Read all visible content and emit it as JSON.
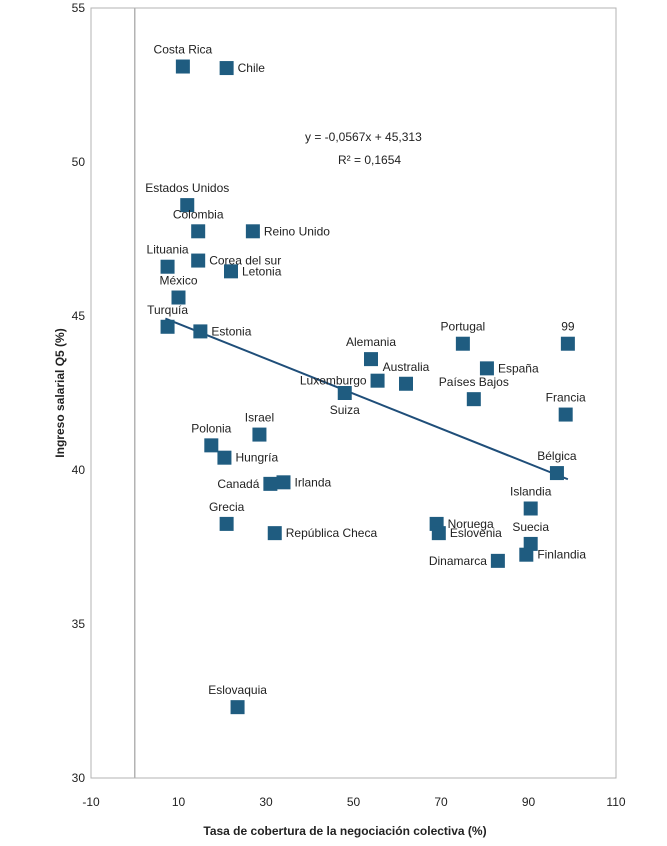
{
  "chart_data": {
    "type": "scatter",
    "title": "",
    "xlabel": "Tasa de cobertura de la negociación colectiva (%)",
    "ylabel": "Ingreso salarial Q5 (%)",
    "xlim": [
      -10,
      110
    ],
    "ylim": [
      30,
      55
    ],
    "xticks": [
      -10,
      10,
      30,
      50,
      70,
      90,
      110
    ],
    "yticks": [
      30,
      35,
      40,
      45,
      50,
      55
    ],
    "grid": false,
    "marker_color": "#1f5c80",
    "trendline": {
      "slope": -0.0567,
      "intercept": 45.313,
      "x_range": [
        7,
        99
      ],
      "color": "#1f4e79",
      "equation": "y =  -0,0567x + 45,313",
      "r2": "R² = 0,1654"
    },
    "points": [
      {
        "label": "Costa Rica",
        "x": 11,
        "y": 53.1,
        "pos": "top"
      },
      {
        "label": "Chile",
        "x": 21,
        "y": 53.05,
        "pos": "right"
      },
      {
        "label": "Estados Unidos",
        "x": 12,
        "y": 48.6,
        "pos": "top"
      },
      {
        "label": "Colombia",
        "x": 14.5,
        "y": 47.75,
        "pos": "top"
      },
      {
        "label": "Reino Unido",
        "x": 27,
        "y": 47.75,
        "pos": "right"
      },
      {
        "label": "Lituania",
        "x": 7.5,
        "y": 46.6,
        "pos": "top"
      },
      {
        "label": "Corea del sur",
        "x": 14.5,
        "y": 46.8,
        "pos": "right"
      },
      {
        "label": "Letonia",
        "x": 22,
        "y": 46.45,
        "pos": "right"
      },
      {
        "label": "México",
        "x": 10,
        "y": 45.6,
        "pos": "top"
      },
      {
        "label": "Turquía",
        "x": 7.5,
        "y": 44.65,
        "pos": "top"
      },
      {
        "label": "Estonia",
        "x": 15,
        "y": 44.5,
        "pos": "right"
      },
      {
        "label": "Alemania",
        "x": 54,
        "y": 43.6,
        "pos": "top"
      },
      {
        "label": "Portugal",
        "x": 75,
        "y": 44.1,
        "pos": "top"
      },
      {
        "label": "99",
        "x": 99,
        "y": 44.1,
        "pos": "top"
      },
      {
        "label": "España",
        "x": 80.5,
        "y": 43.3,
        "pos": "right"
      },
      {
        "label": "Australia",
        "x": 62,
        "y": 42.8,
        "pos": "top"
      },
      {
        "label": "Luxemburgo",
        "x": 55.5,
        "y": 42.9,
        "pos": "left"
      },
      {
        "label": "Países Bajos",
        "x": 77.5,
        "y": 42.3,
        "pos": "top"
      },
      {
        "label": "Suiza",
        "x": 48,
        "y": 42.5,
        "pos": "bottom"
      },
      {
        "label": "Francia",
        "x": 98.5,
        "y": 41.8,
        "pos": "top"
      },
      {
        "label": "Israel",
        "x": 28.5,
        "y": 41.15,
        "pos": "top"
      },
      {
        "label": "Polonia",
        "x": 17.5,
        "y": 40.8,
        "pos": "top"
      },
      {
        "label": "Hungría",
        "x": 20.5,
        "y": 40.4,
        "pos": "right"
      },
      {
        "label": "Bélgica",
        "x": 96.5,
        "y": 39.9,
        "pos": "top"
      },
      {
        "label": "Canadá",
        "x": 31,
        "y": 39.55,
        "pos": "left"
      },
      {
        "label": "Irlanda",
        "x": 34,
        "y": 39.6,
        "pos": "right"
      },
      {
        "label": "Islandia",
        "x": 90.5,
        "y": 38.75,
        "pos": "top"
      },
      {
        "label": "Grecia",
        "x": 21,
        "y": 38.25,
        "pos": "top"
      },
      {
        "label": "Noruega",
        "x": 69,
        "y": 38.25,
        "pos": "right"
      },
      {
        "label": "Eslovenia",
        "x": 69.5,
        "y": 37.95,
        "pos": "right"
      },
      {
        "label": "República Checa",
        "x": 32,
        "y": 37.95,
        "pos": "right"
      },
      {
        "label": "Suecia",
        "x": 90.5,
        "y": 37.6,
        "pos": "top"
      },
      {
        "label": "Finlandia",
        "x": 89.5,
        "y": 37.25,
        "pos": "right"
      },
      {
        "label": "Dinamarca",
        "x": 83,
        "y": 37.05,
        "pos": "left"
      },
      {
        "label": "Eslovaquia",
        "x": 23.5,
        "y": 32.3,
        "pos": "top"
      }
    ]
  }
}
